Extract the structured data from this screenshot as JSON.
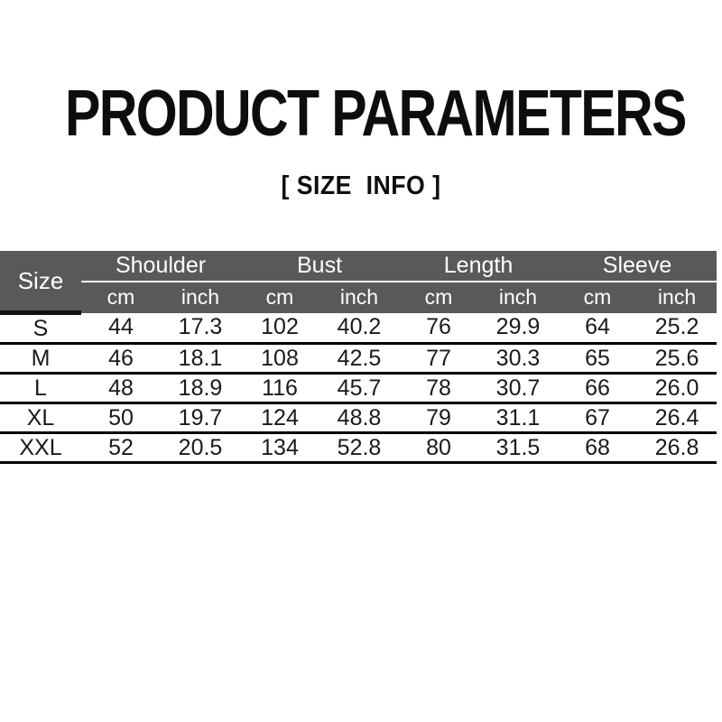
{
  "page": {
    "title": "PRODUCT PARAMETERS",
    "subtitle": "[ SIZE  INFO ]"
  },
  "size_table": {
    "corner_label": "Size",
    "groups": [
      {
        "label": "Shoulder"
      },
      {
        "label": "Bust"
      },
      {
        "label": "Length"
      },
      {
        "label": "Sleeve"
      }
    ],
    "unit_labels": [
      "cm",
      "inch",
      "cm",
      "inch",
      "cm",
      "inch",
      "cm",
      "inch"
    ],
    "rows": [
      {
        "size": "S",
        "values": [
          "44",
          "17.3",
          "102",
          "40.2",
          "76",
          "29.9",
          "64",
          "25.2"
        ]
      },
      {
        "size": "M",
        "values": [
          "46",
          "18.1",
          "108",
          "42.5",
          "77",
          "30.3",
          "65",
          "25.6"
        ]
      },
      {
        "size": "L",
        "values": [
          "48",
          "18.9",
          "116",
          "45.7",
          "78",
          "30.7",
          "66",
          "26.0"
        ]
      },
      {
        "size": "XL",
        "values": [
          "50",
          "19.7",
          "124",
          "48.8",
          "79",
          "31.1",
          "67",
          "26.4"
        ]
      },
      {
        "size": "XXL",
        "values": [
          "52",
          "20.5",
          "134",
          "52.8",
          "80",
          "31.5",
          "68",
          "26.8"
        ]
      }
    ]
  },
  "colors": {
    "header_background": "#58595b",
    "header_text": "#ffffff",
    "body_text": "#1a1a1a",
    "rule_line": "#000000",
    "page_background": "#ffffff"
  }
}
